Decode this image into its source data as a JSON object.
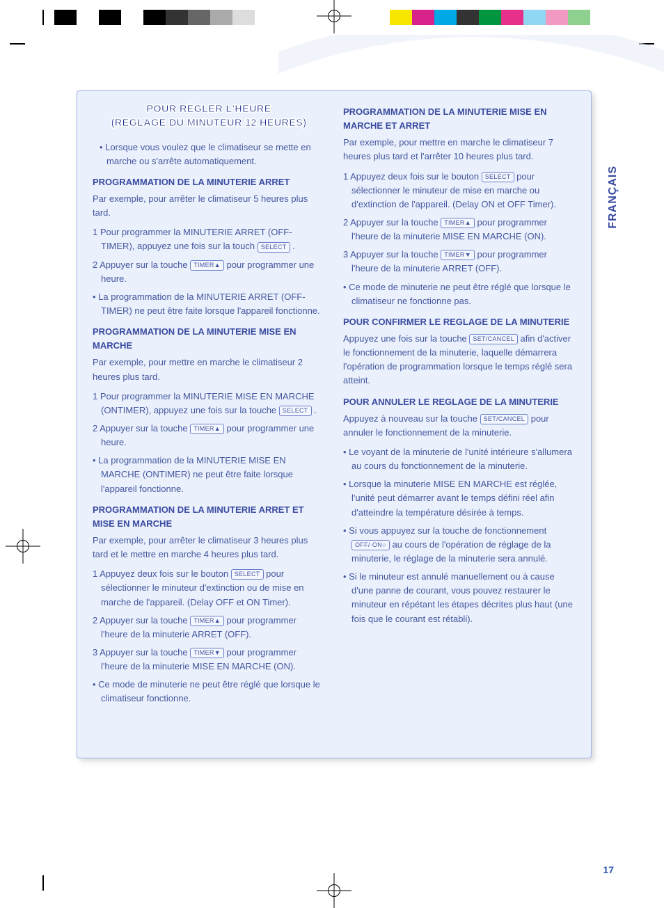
{
  "colorbars": {
    "left": [
      "#000000",
      "#ffffff",
      "#000000",
      "#ffffff",
      "#000000",
      "#333333",
      "#666666",
      "#aaaaaa",
      "#dddddd",
      "#ffffff"
    ],
    "right": [
      "#f6e600",
      "#d9218b",
      "#00a9e6",
      "#333333",
      "#009640",
      "#e73089",
      "#8fd7f2",
      "#f299c1",
      "#8ed08e",
      "#ffffff"
    ]
  },
  "language_tab": "FRANÇAIS",
  "page_number": "17",
  "card": {
    "bg": "#eaf0fc",
    "border": "#9eb4e6",
    "text_color": "#45579e",
    "heading_color": "#3a4ba0"
  },
  "buttons": {
    "select": "SELECT",
    "timer_up": "TIMER▲",
    "timer_down": "TIMER▼",
    "setcancel": "SET/CANCEL",
    "offon": "OFF/·ON○"
  },
  "left_col": {
    "title_l1": "POUR RÉGLER L'HEURE",
    "title_l2": "(REGLAGE DU MINUTEUR 12 HEURES)",
    "intro": "Lorsque vous voulez que le climatiseur se mette en marche ou s'arrête automatiquement.",
    "s1_h": "PROGRAMMATION DE LA MINUTERIE ARRET",
    "s1_p": "Par exemple, pour arrêter le climatiseur 5 heures plus tard.",
    "s1_1a": "1 Pour programmer la MINUTERIE ARRET (OFF-TIMER), appuyez une fois sur la touch ",
    "s1_1b": " .",
    "s1_2a": "2 Appuyer sur la touche ",
    "s1_2b": " pour programmer une heure.",
    "s1_n": "La programmation de la MINUTERIE ARRET (OFF-TIMER) ne peut être faite lorsque l'appareil fonctionne.",
    "s2_h": "PROGRAMMATION DE LA MINUTERIE MISE EN MARCHE",
    "s2_p": "Par exemple, pour mettre en marche le climatiseur 2 heures plus tard.",
    "s2_1a": "1 Pour programmer la MINUTERIE MISE EN MARCHE (ONTIMER), appuyez une fois sur la touche ",
    "s2_1b": " .",
    "s2_2a": "2 Appuyer sur la touche ",
    "s2_2b": " pour programmer une heure.",
    "s2_n": "La programmation de la MINUTERIE MISE EN MARCHE (ONTIMER) ne peut être faite lorsque l'appareil fonctionne.",
    "s3_h": "PROGRAMMATION DE LA MINUTERIE ARRET ET MISE EN MARCHE",
    "s3_p": "Par exemple, pour arrêter le climatiseur 3 heures plus tard et le mettre en marche 4 heures plus tard.",
    "s3_1a": "1 Appuyez deux fois sur le bouton ",
    "s3_1b": " pour sélectionner le minuteur d'extinction ou de mise en marche de l'appareil. (Delay OFF et ON Timer).",
    "s3_2a": "2 Appuyer sur la touche ",
    "s3_2b": " pour programmer l'heure de la minuterie ARRET (OFF).",
    "s3_3a": "3 Appuyer sur la touche ",
    "s3_3b": " pour programmer l'heure de la minuterie MISE EN MARCHE (ON).",
    "s3_n": "Ce mode de minuterie ne peut être réglé que lorsque le climatiseur fonctionne."
  },
  "right_col": {
    "s4_h": "PROGRAMMATION DE LA MINUTERIE MISE EN MARCHE ET ARRET",
    "s4_p": "Par exemple, pour mettre en marche le climatiseur 7 heures plus tard et l'arrêter 10 heures plus tard.",
    "s4_1a": "1 Appuyez deux fois sur le bouton ",
    "s4_1b": " pour sélectionner le minuteur de mise en marche ou d'extinction de l'appareil. (Delay ON et OFF Timer).",
    "s4_2a": "2 Appuyer sur la touche ",
    "s4_2b": " pour programmer l'heure de la minuterie MISE EN MARCHE (ON).",
    "s4_3a": "3 Appuyer sur la touche ",
    "s4_3b": " pour programmer l'heure de la minuterie ARRET (OFF).",
    "s4_n": "Ce mode de minuterie ne peut être réglé que lorsque le climatiseur ne fonctionne pas.",
    "s5_h": "POUR CONFIRMER LE REGLAGE DE LA MINUTERIE",
    "s5_pa": "Appuyez une fois sur la touche ",
    "s5_pb": " afin d'activer le fonctionnement de la minuterie, laquelle démarrera l'opération de programmation lorsque le temps réglé sera atteint.",
    "s6_h": "POUR ANNULER LE REGLAGE DE LA MINUTERIE",
    "s6_pa": "Appuyez à nouveau sur la touche ",
    "s6_pb": " pour annuler le fonctionnement de la minuterie.",
    "s6_n1": "Le voyant de la minuterie de l'unité intérieure s'allumera au cours du fonctionnement de la minuterie.",
    "s6_n2": "Lorsque la minuterie MISE EN MARCHE est réglée, l'unité peut démarrer avant le temps défini réel afin d'atteindre la température désirée à temps.",
    "s6_n3a": "Si vous appuyez sur la touche de fonctionnement ",
    "s6_n3b": " au cours de l'opération de réglage de la minuterie, le réglage de la minuterie sera annulé.",
    "s6_n4": "Si le minuteur est annulé manuellement ou à cause d'une panne de courant, vous pouvez restaurer le minuteur en répétant les étapes décrites plus haut (une fois que le courant est rétabli)."
  }
}
